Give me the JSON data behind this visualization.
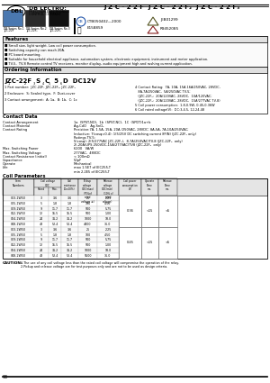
{
  "title": "J Z C - 2 2 F  J Z C - 2 2 F₂  J Z C - 2 2 F₃",
  "company": "DB LECTRO:",
  "cert1": "CTB050402—2000",
  "cert2": "JEB01299",
  "cert3": "E158859",
  "cert4": "R9452085",
  "features": [
    "Small size, light weight. Low coil power consumption.",
    "Switching capacity can reach 20A.",
    "PC board mounting.",
    "Suitable for household electrical appliance, automation system, electronic equipment, instrument and meter application.",
    "TV-5,  TV-8 Remote control TV receivers, monitor display, audio equipment high and rushing current application."
  ],
  "ordering_label": "JZC-22F  S  C  5  D  DC12V",
  "left_ordering": [
    "1 Part number:  JZC-22F, JZC-22F₂, JZC-22F₃",
    "2 Enclosure:  S: Sealed type,  F: Dust-cover",
    "3 Contact arrangement:  A: 1a,  B: 1b,  C: 1c"
  ],
  "right_ordering": [
    "4 Contact Rating:  7A, 10A, 15A,16A/250VAC, 28VDC,",
    "   8A,7A/250VAC,  5A/250VAC TV-5;",
    "   (JZC-22F₂:  20A/120VAC, 28VDC,  10A/120VAC;",
    "   (JZC-22F₃:  20A/120VAC, 28VDC,  15A/277VAC TV-8)",
    "5 Coil power consumption:  1.8,0.9W, 0.45,0.36W",
    "6 Coil rated voltage(V):  DC:3,4.5, 12,24,48"
  ],
  "contact_rows": [
    [
      "Contact Arrangement",
      "1a  (SPST-NO),  1b  (SPST-NC),  1C  (SPDT)1a+b"
    ],
    [
      "Contact Material",
      "Ag-CdO    Ag-SnO₂"
    ],
    [
      "Contact Rating",
      "Resistive:7A, 1.5A, 15A, 20A /250VAC, 28VDC; 8A,5A, 7A,10A/250VAC;"
    ],
    [
      "",
      "Inductive: 7(cosφ=0.4): 1(5/25V DC switching current 8FIN) (JZC-22F₂ only)"
    ],
    [
      "",
      "Ratings TV-5:"
    ],
    [
      "",
      "5(cosφ): 2(5/277VAC JZC-22F₂),  8-7A(250VAC)TV-8 (JZC-22F₃  only)"
    ],
    [
      "",
      "2(-20A/UPS 250VDC-15A/277VAC)TV8 (JZC-22F₃  only)"
    ],
    [
      "Max. Switching Power",
      "6200   VA/W"
    ],
    [
      "Max. Switching Voltage",
      "277VAC,  48VDC"
    ],
    [
      "Contact Resistance (initial)",
      "< 100mΩ"
    ],
    [
      "Capacitance",
      "50pF"
    ],
    [
      "Operate",
      "Mechanical"
    ],
    [
      "Life",
      "max 1.5E7 of IEC255-T"
    ],
    [
      "",
      "min 2.2E5 of IEC255-T"
    ]
  ],
  "coil_headers": [
    "Item\nNumbers",
    "Coil voltage\nVDC",
    "Coil resistance\n(Ω±10%)",
    "Pickup\nvoltage\nVDC(max)\n(75%of rated\nvoltage ②)",
    "Release\nvoltage\nVDC(min)\n(10% of\nrated\nvoltage)",
    "Coil power\nconsumption\nW",
    "Operate\nTime\nms.",
    "Release\nTime\nms."
  ],
  "coil_subheader": "Rated    Max.",
  "coil_data": [
    [
      "003-1W50",
      "3",
      "3.6",
      "25",
      "2.25",
      "0.3"
    ],
    [
      "005-1W50",
      "5",
      "1.8",
      "100",
      "4.50",
      "0.5"
    ],
    [
      "009-1W50",
      "9",
      "11.7",
      "500",
      "5.75",
      "0.9"
    ],
    [
      "012-1W50",
      "12",
      "15.5",
      "500",
      "1.00",
      "1.2"
    ],
    [
      "024-1W50",
      "24",
      "31.2",
      "1000",
      "18.0",
      "2.4"
    ],
    [
      "048-1W50",
      "48",
      "52.4",
      "4400",
      "36.0",
      "4.8"
    ],
    [
      "003-2W50",
      "3",
      "3.6",
      "25",
      "2.25",
      "0.3"
    ],
    [
      "005-2W50",
      "5",
      "1.8",
      "100",
      "4.50",
      "0.5"
    ],
    [
      "009-2W50",
      "9",
      "11.7",
      "500",
      "5.75",
      "0.9"
    ],
    [
      "012-2W50",
      "12",
      "15.5",
      "500",
      "1.00",
      "1.2"
    ],
    [
      "024-2W50",
      "24",
      "31.2",
      "1000",
      "18.0",
      "2.4"
    ],
    [
      "048-2W50",
      "48",
      "52.4",
      "5500",
      "36.0",
      "4.8"
    ]
  ],
  "merged_power": [
    "0.36",
    "0.45"
  ],
  "merged_operate": "<15",
  "merged_release": "<5",
  "caution1": "1.The use of any coil voltage less than the rated coil voltage will compromise the operation of the relay.",
  "caution2": "2.Pickup and release voltage are for test purposes only and are not to be used as design criteria.",
  "page_num": "93"
}
